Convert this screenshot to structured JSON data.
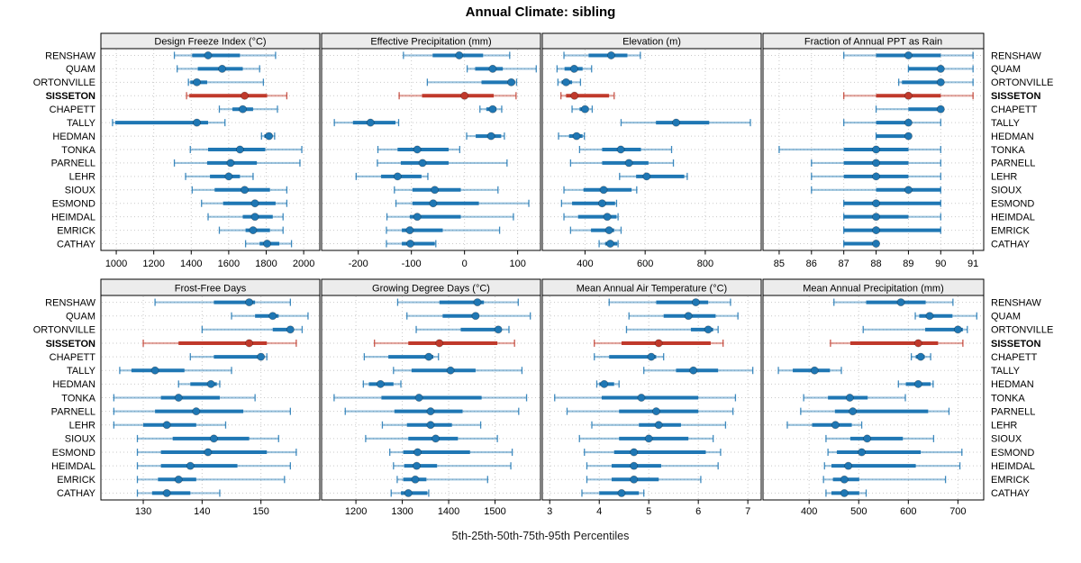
{
  "chart_data": {
    "type": "scatter",
    "variant": "lattice multi-panel five-number percentile dot plot (whisker = 5th-95th, thick bar = 25th-75th, dot = median)",
    "title": "Annual Climate: sibling",
    "xlabel": "5th-25th-50th-75th-95th Percentiles",
    "legend_position": "none",
    "grid": "dotted",
    "percentile_order": [
      5,
      25,
      50,
      75,
      95
    ],
    "stations": [
      "RENSHAW",
      "QUAM",
      "ORTONVILLE",
      "SISSETON",
      "CHAPETT",
      "TALLY",
      "HEDMAN",
      "TONKA",
      "PARNELL",
      "LEHR",
      "SIOUX",
      "ESMOND",
      "HEIMDAL",
      "EMRICK",
      "CATHAY"
    ],
    "highlight_station": "SISSETON",
    "colors": {
      "series": "#1f77b4",
      "highlight": "#c0392b",
      "strip_bg": "#ececec",
      "panel_border": "#000000",
      "grid": "#c9c9c9",
      "text": "#000000"
    },
    "panels": [
      {
        "title": "Design Freeze Index (°C)",
        "row": 0,
        "col": 0,
        "xlim": [
          918,
          2086
        ],
        "ticks": [
          1000,
          1200,
          1400,
          1600,
          1800,
          2000
        ],
        "values": [
          [
            1310,
            1405,
            1490,
            1660,
            1850
          ],
          [
            1325,
            1435,
            1565,
            1675,
            1765
          ],
          [
            1385,
            1395,
            1430,
            1485,
            1785
          ],
          [
            1375,
            1390,
            1685,
            1805,
            1910
          ],
          [
            1550,
            1620,
            1675,
            1730,
            1860
          ],
          [
            980,
            995,
            1430,
            1490,
            1580
          ],
          [
            1775,
            1790,
            1815,
            1830,
            1845
          ],
          [
            1395,
            1490,
            1660,
            1795,
            1990
          ],
          [
            1310,
            1485,
            1610,
            1750,
            1980
          ],
          [
            1370,
            1500,
            1600,
            1660,
            1730
          ],
          [
            1405,
            1525,
            1685,
            1820,
            1910
          ],
          [
            1455,
            1570,
            1740,
            1850,
            1910
          ],
          [
            1490,
            1675,
            1740,
            1835,
            1890
          ],
          [
            1550,
            1690,
            1730,
            1820,
            1890
          ],
          [
            1690,
            1765,
            1805,
            1870,
            1935
          ]
        ]
      },
      {
        "title": "Effective Precipitation (mm)",
        "row": 0,
        "col": 1,
        "xlim": [
          -269,
          143
        ],
        "ticks": [
          -200,
          -100,
          0,
          100
        ],
        "values": [
          [
            -115,
            -60,
            -10,
            35,
            85
          ],
          [
            5,
            20,
            53,
            72,
            135
          ],
          [
            -70,
            32,
            88,
            95,
            98
          ],
          [
            -123,
            -80,
            0,
            55,
            97
          ],
          [
            29,
            41,
            53,
            60,
            70
          ],
          [
            -245,
            -210,
            -177,
            -130,
            -124
          ],
          [
            4,
            21,
            50,
            69,
            75
          ],
          [
            -163,
            -126,
            -89,
            -30,
            -9
          ],
          [
            -164,
            -120,
            -79,
            -30,
            80
          ],
          [
            -204,
            -157,
            -126,
            -81,
            -69
          ],
          [
            -132,
            -98,
            -56,
            -7,
            63
          ],
          [
            -129,
            -98,
            -59,
            27,
            121
          ],
          [
            -146,
            -103,
            -89,
            -7,
            92
          ],
          [
            -147,
            -118,
            -103,
            -41,
            66
          ],
          [
            -147,
            -118,
            -102,
            -56,
            -54
          ]
        ]
      },
      {
        "title": "Elevation (m)",
        "row": 0,
        "col": 2,
        "xlim": [
          258,
          986
        ],
        "ticks": [
          400,
          600,
          800
        ],
        "values": [
          [
            330,
            412,
            487,
            541,
            584
          ],
          [
            307,
            332,
            364,
            392,
            422
          ],
          [
            310,
            322,
            337,
            357,
            385
          ],
          [
            320,
            337,
            365,
            480,
            497
          ],
          [
            357,
            382,
            400,
            412,
            424
          ],
          [
            520,
            636,
            703,
            813,
            950
          ],
          [
            312,
            347,
            372,
            392,
            398
          ],
          [
            382,
            457,
            519,
            586,
            688
          ],
          [
            352,
            457,
            546,
            611,
            694
          ],
          [
            515,
            570,
            605,
            730,
            740
          ],
          [
            330,
            395,
            462,
            555,
            572
          ],
          [
            322,
            357,
            457,
            500,
            505
          ],
          [
            330,
            377,
            474,
            505,
            510
          ],
          [
            352,
            420,
            480,
            497,
            520
          ],
          [
            447,
            467,
            484,
            507,
            510
          ]
        ]
      },
      {
        "title": "Fraction of Annual PPT as Rain",
        "row": 0,
        "col": 3,
        "xlim": [
          84.5,
          91.33
        ],
        "ticks": [
          85,
          86,
          87,
          88,
          89,
          90,
          91
        ],
        "values": [
          [
            87,
            88,
            89,
            90,
            91
          ],
          [
            89,
            89,
            90,
            90,
            91
          ],
          [
            88.7,
            88.8,
            90,
            90,
            91
          ],
          [
            87,
            88,
            89,
            90,
            91
          ],
          [
            88,
            89,
            90,
            90,
            90
          ],
          [
            87,
            88,
            89,
            89,
            90
          ],
          [
            88,
            88,
            89,
            89,
            89
          ],
          [
            85,
            87,
            88,
            89,
            90
          ],
          [
            86,
            87,
            88,
            89,
            90
          ],
          [
            86,
            87,
            88,
            89,
            90
          ],
          [
            86,
            88,
            89,
            90,
            90
          ],
          [
            87,
            87,
            88,
            90,
            90
          ],
          [
            87,
            87,
            88,
            89,
            90
          ],
          [
            87,
            87,
            88,
            90,
            90
          ],
          [
            87,
            87,
            88,
            88,
            88
          ]
        ]
      },
      {
        "title": "Frost-Free Days",
        "row": 1,
        "col": 0,
        "xlim": [
          122.8,
          160
        ],
        "ticks": [
          130,
          140,
          150
        ],
        "values": [
          [
            132,
            142,
            148,
            149,
            155
          ],
          [
            145,
            149,
            152,
            153,
            158
          ],
          [
            140,
            152,
            155,
            155.5,
            157
          ],
          [
            130,
            136,
            148,
            151,
            156
          ],
          [
            138,
            142,
            150,
            150.5,
            151
          ],
          [
            126,
            128,
            132,
            137,
            145
          ],
          [
            136,
            138,
            141.5,
            142.5,
            143
          ],
          [
            125,
            133,
            136,
            143,
            149
          ],
          [
            125,
            132,
            139,
            147,
            155
          ],
          [
            125,
            130,
            134,
            139,
            144
          ],
          [
            129,
            135,
            142,
            148,
            153
          ],
          [
            129,
            133,
            141,
            151,
            156
          ],
          [
            129,
            133,
            138,
            146,
            155
          ],
          [
            129,
            132.5,
            136,
            139,
            154
          ],
          [
            129,
            131.5,
            134,
            138,
            143
          ]
        ]
      },
      {
        "title": "Growing Degree Days (°C)",
        "row": 1,
        "col": 1,
        "xlim": [
          1126,
          1598
        ],
        "ticks": [
          1200,
          1300,
          1400,
          1500
        ],
        "values": [
          [
            1290,
            1380,
            1462,
            1476,
            1550
          ],
          [
            1310,
            1387,
            1458,
            1465,
            1576
          ],
          [
            1330,
            1426,
            1507,
            1512,
            1530
          ],
          [
            1240,
            1313,
            1380,
            1505,
            1542
          ],
          [
            1218,
            1270,
            1357,
            1367,
            1378
          ],
          [
            1281,
            1320,
            1404,
            1458,
            1558
          ],
          [
            1216,
            1228,
            1253,
            1281,
            1297
          ],
          [
            1153,
            1255,
            1336,
            1471,
            1568
          ],
          [
            1177,
            1283,
            1361,
            1430,
            1551
          ],
          [
            1257,
            1310,
            1361,
            1407,
            1469
          ],
          [
            1221,
            1313,
            1372,
            1420,
            1505
          ],
          [
            1273,
            1302,
            1333,
            1446,
            1537
          ],
          [
            1281,
            1304,
            1331,
            1375,
            1534
          ],
          [
            1289,
            1302,
            1328,
            1352,
            1484
          ],
          [
            1276,
            1297,
            1313,
            1354,
            1357
          ]
        ]
      },
      {
        "title": "Mean Annual Air Temperature (°C)",
        "row": 1,
        "col": 2,
        "xlim": [
          2.85,
          7.27
        ],
        "ticks": [
          3,
          4,
          5,
          6,
          7
        ],
        "values": [
          [
            4.2,
            5.15,
            5.95,
            6.2,
            6.65
          ],
          [
            4.6,
            5.3,
            5.8,
            6.35,
            6.8
          ],
          [
            4.55,
            5.85,
            6.2,
            6.3,
            6.4
          ],
          [
            3.9,
            4.45,
            5.2,
            6.25,
            6.5
          ],
          [
            3.9,
            4.2,
            5.05,
            5.15,
            5.3
          ],
          [
            4.9,
            5.55,
            5.9,
            6.4,
            7.1
          ],
          [
            3.95,
            4.0,
            4.1,
            4.3,
            4.4
          ],
          [
            3.1,
            4.05,
            4.85,
            6.0,
            6.75
          ],
          [
            3.35,
            4.4,
            5.15,
            6.0,
            6.7
          ],
          [
            3.85,
            4.8,
            5.2,
            5.65,
            6.55
          ],
          [
            3.6,
            4.4,
            5.0,
            5.8,
            6.3
          ],
          [
            3.7,
            4.3,
            4.7,
            6.15,
            6.45
          ],
          [
            3.75,
            4.25,
            4.7,
            5.25,
            6.4
          ],
          [
            3.75,
            4.25,
            4.7,
            5.2,
            6.05
          ],
          [
            3.65,
            4.0,
            4.45,
            4.8,
            4.9
          ]
        ]
      },
      {
        "title": "Mean Annual Precipitation (mm)",
        "row": 1,
        "col": 3,
        "xlim": [
          307,
          752
        ],
        "ticks": [
          400,
          500,
          600,
          700
        ],
        "values": [
          [
            450,
            515,
            585,
            635,
            690
          ],
          [
            614,
            622,
            643,
            689,
            738
          ],
          [
            509,
            634,
            700,
            710,
            719
          ],
          [
            443,
            483,
            620,
            660,
            710
          ],
          [
            606,
            615,
            625,
            633,
            645
          ],
          [
            338,
            367,
            411,
            442,
            465
          ],
          [
            580,
            595,
            620,
            645,
            650
          ],
          [
            389,
            438,
            482,
            518,
            594
          ],
          [
            383,
            452,
            488,
            640,
            682
          ],
          [
            356,
            406,
            453,
            486,
            506
          ],
          [
            434,
            483,
            517,
            589,
            651
          ],
          [
            438,
            456,
            506,
            625,
            708
          ],
          [
            431,
            445,
            479,
            615,
            704
          ],
          [
            429,
            448,
            471,
            501,
            675
          ],
          [
            434,
            445,
            471,
            501,
            515
          ]
        ]
      }
    ]
  }
}
